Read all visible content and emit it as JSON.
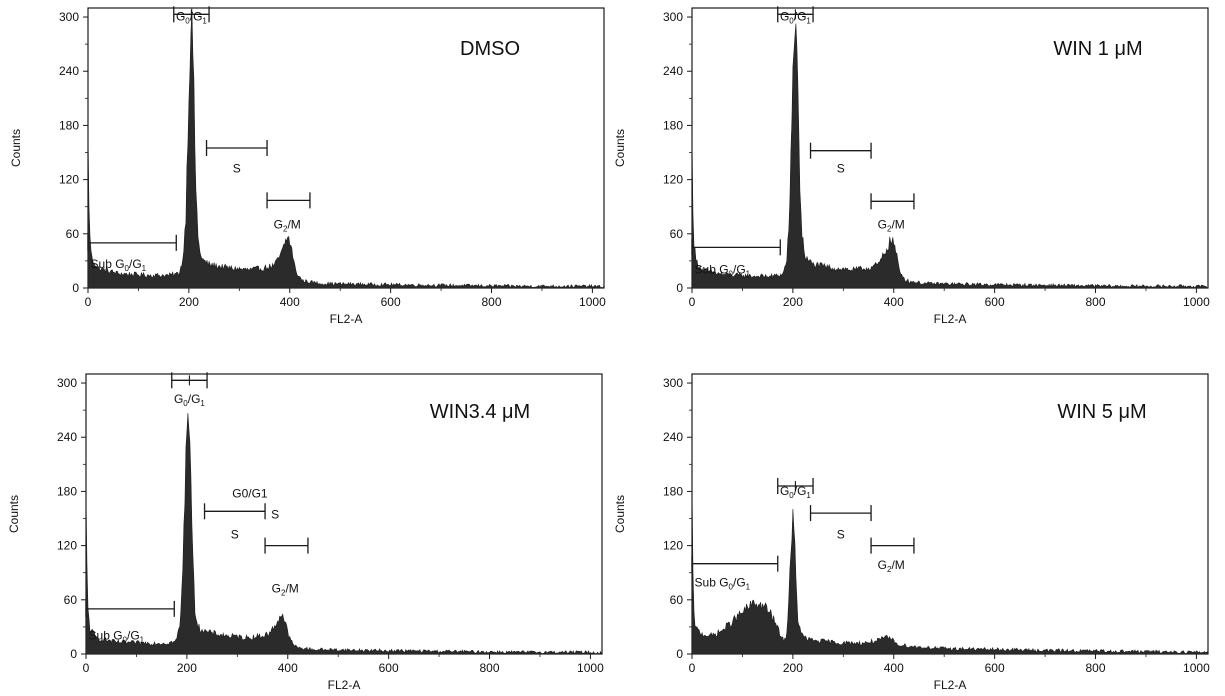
{
  "chart_data": [
    {
      "type": "area",
      "title": "DMSO",
      "xlabel": "FL2-A",
      "ylabel": "Counts",
      "xlim": [
        0,
        1023
      ],
      "ylim": [
        0,
        310
      ],
      "xticks": [
        "0",
        "200",
        "400",
        "600",
        "800",
        "1000"
      ],
      "yticks": [
        "0",
        "60",
        "120",
        "180",
        "240",
        "300"
      ],
      "series": [
        {
          "points": [
            [
              0,
              165
            ],
            [
              3,
              60
            ],
            [
              8,
              32
            ],
            [
              20,
              22
            ],
            [
              60,
              16
            ],
            [
              120,
              14
            ],
            [
              160,
              14
            ],
            [
              180,
              16
            ],
            [
              188,
              30
            ],
            [
              194,
              80
            ],
            [
              198,
              175
            ],
            [
              202,
              260
            ],
            [
              205,
              300
            ],
            [
              208,
              265
            ],
            [
              211,
              185
            ],
            [
              214,
              110
            ],
            [
              218,
              55
            ],
            [
              225,
              32
            ],
            [
              240,
              26
            ],
            [
              280,
              22
            ],
            [
              320,
              20
            ],
            [
              350,
              22
            ],
            [
              370,
              25
            ],
            [
              385,
              40
            ],
            [
              393,
              54
            ],
            [
              398,
              55
            ],
            [
              404,
              42
            ],
            [
              412,
              18
            ],
            [
              425,
              8
            ],
            [
              460,
              5
            ],
            [
              550,
              4
            ],
            [
              700,
              3
            ],
            [
              850,
              2
            ],
            [
              1000,
              2
            ],
            [
              1023,
              1
            ]
          ]
        }
      ],
      "annotations": [
        {
          "text": "G",
          "sub": "0",
          "text2": "/G",
          "sub2": "1",
          "x": 205,
          "y": 296
        },
        {
          "text": "S",
          "x": 295,
          "y": 128
        },
        {
          "text": "G",
          "sub": "2",
          "text2": "/M",
          "x": 395,
          "y": 66
        },
        {
          "text": "Sub G",
          "sub": "0",
          "text2": "/G",
          "sub2": "1",
          "x": 5,
          "y": 22
        }
      ],
      "markers": [
        {
          "x1": 170,
          "x2": 240,
          "y": 303,
          "center": 205
        },
        {
          "x1": 235,
          "x2": 355,
          "y": 155
        },
        {
          "x1": 355,
          "x2": 440,
          "y": 97
        },
        {
          "x1": 0,
          "x2": 175,
          "y": 50
        }
      ]
    },
    {
      "type": "area",
      "title": "WIN 1 μM",
      "xlabel": "FL2-A",
      "ylabel": "Counts",
      "xlim": [
        0,
        1023
      ],
      "ylim": [
        0,
        310
      ],
      "xticks": [
        "0",
        "200",
        "400",
        "600",
        "800",
        "1000"
      ],
      "yticks": [
        "0",
        "60",
        "120",
        "180",
        "240",
        "300"
      ],
      "series": [
        {
          "points": [
            [
              0,
              160
            ],
            [
              3,
              55
            ],
            [
              8,
              30
            ],
            [
              20,
              20
            ],
            [
              60,
              15
            ],
            [
              120,
              13
            ],
            [
              160,
              13
            ],
            [
              180,
              15
            ],
            [
              188,
              30
            ],
            [
              194,
              90
            ],
            [
              198,
              190
            ],
            [
              202,
              275
            ],
            [
              205,
              300
            ],
            [
              208,
              270
            ],
            [
              211,
              190
            ],
            [
              214,
              115
            ],
            [
              218,
              58
            ],
            [
              225,
              33
            ],
            [
              240,
              26
            ],
            [
              280,
              22
            ],
            [
              320,
              20
            ],
            [
              350,
              22
            ],
            [
              370,
              26
            ],
            [
              385,
              42
            ],
            [
              393,
              52
            ],
            [
              398,
              53
            ],
            [
              404,
              40
            ],
            [
              412,
              18
            ],
            [
              425,
              8
            ],
            [
              460,
              5
            ],
            [
              550,
              4
            ],
            [
              700,
              3
            ],
            [
              850,
              2
            ],
            [
              1000,
              2
            ],
            [
              1023,
              1
            ]
          ]
        }
      ],
      "annotations": [
        {
          "text": "G",
          "sub": "0",
          "text2": "/G",
          "sub2": "1",
          "x": 205,
          "y": 296
        },
        {
          "text": "S",
          "x": 295,
          "y": 128
        },
        {
          "text": "G",
          "sub": "2",
          "text2": "/M",
          "x": 395,
          "y": 66
        },
        {
          "text": "Sub G",
          "sub": "0",
          "text2": "/G",
          "sub2": "1",
          "x": 5,
          "y": 16
        }
      ],
      "markers": [
        {
          "x1": 170,
          "x2": 240,
          "y": 303,
          "center": 205
        },
        {
          "x1": 235,
          "x2": 355,
          "y": 152
        },
        {
          "x1": 355,
          "x2": 440,
          "y": 96
        },
        {
          "x1": 0,
          "x2": 175,
          "y": 45
        }
      ]
    },
    {
      "type": "area",
      "title": "WIN3.4 μM",
      "xlabel": "FL2-A",
      "ylabel": "Counts",
      "xlim": [
        0,
        1023
      ],
      "ylim": [
        0,
        310
      ],
      "xticks": [
        "0",
        "200",
        "400",
        "600",
        "800",
        "1000"
      ],
      "yticks": [
        "0",
        "60",
        "120",
        "180",
        "240",
        "300"
      ],
      "series": [
        {
          "points": [
            [
              0,
              165
            ],
            [
              3,
              55
            ],
            [
              8,
              28
            ],
            [
              20,
              18
            ],
            [
              60,
              13
            ],
            [
              120,
              12
            ],
            [
              160,
              12
            ],
            [
              178,
              14
            ],
            [
              186,
              30
            ],
            [
              192,
              90
            ],
            [
              196,
              180
            ],
            [
              200,
              255
            ],
            [
              203,
              280
            ],
            [
              206,
              250
            ],
            [
              209,
              170
            ],
            [
              212,
              100
            ],
            [
              216,
              50
            ],
            [
              222,
              30
            ],
            [
              240,
              24
            ],
            [
              280,
              20
            ],
            [
              320,
              18
            ],
            [
              350,
              20
            ],
            [
              365,
              23
            ],
            [
              378,
              34
            ],
            [
              386,
              44
            ],
            [
              391,
              42
            ],
            [
              397,
              30
            ],
            [
              405,
              15
            ],
            [
              418,
              7
            ],
            [
              450,
              5
            ],
            [
              550,
              4
            ],
            [
              700,
              3
            ],
            [
              850,
              2
            ],
            [
              1000,
              2
            ],
            [
              1023,
              1
            ]
          ]
        }
      ],
      "annotations": [
        {
          "text": "G",
          "sub": "0",
          "text2": "/G",
          "sub2": "1",
          "x": 205,
          "y": 278
        },
        {
          "text": "G0/G1",
          "x": 325,
          "y": 173
        },
        {
          "text": "S",
          "x": 375,
          "y": 150
        },
        {
          "text": "S",
          "x": 295,
          "y": 128
        },
        {
          "text": "G",
          "sub": "2",
          "text2": "/M",
          "x": 395,
          "y": 68
        },
        {
          "text": "Sub G",
          "sub": "0",
          "text2": "/G",
          "sub2": "1",
          "x": 5,
          "y": 16
        }
      ],
      "markers": [
        {
          "x1": 170,
          "x2": 240,
          "y": 303,
          "center": 205
        },
        {
          "x1": 235,
          "x2": 355,
          "y": 158
        },
        {
          "x1": 355,
          "x2": 440,
          "y": 120
        },
        {
          "x1": 0,
          "x2": 175,
          "y": 50
        }
      ]
    },
    {
      "type": "area",
      "title": "WIN 5 μM",
      "xlabel": "FL2-A",
      "ylabel": "Counts",
      "xlim": [
        0,
        1023
      ],
      "ylim": [
        0,
        310
      ],
      "xticks": [
        "0",
        "200",
        "400",
        "600",
        "800",
        "1000"
      ],
      "yticks": [
        "0",
        "60",
        "120",
        "180",
        "240",
        "300"
      ],
      "series": [
        {
          "points": [
            [
              0,
              175
            ],
            [
              3,
              45
            ],
            [
              8,
              28
            ],
            [
              20,
              22
            ],
            [
              40,
              20
            ],
            [
              60,
              26
            ],
            [
              80,
              36
            ],
            [
              100,
              46
            ],
            [
              115,
              53
            ],
            [
              125,
              56
            ],
            [
              135,
              54
            ],
            [
              145,
              52
            ],
            [
              155,
              45
            ],
            [
              165,
              35
            ],
            [
              172,
              25
            ],
            [
              180,
              16
            ],
            [
              186,
              15
            ],
            [
              190,
              40
            ],
            [
              194,
              90
            ],
            [
              197,
              130
            ],
            [
              200,
              150
            ],
            [
              203,
              130
            ],
            [
              206,
              80
            ],
            [
              210,
              40
            ],
            [
              216,
              22
            ],
            [
              230,
              16
            ],
            [
              260,
              14
            ],
            [
              300,
              12
            ],
            [
              340,
              12
            ],
            [
              370,
              15
            ],
            [
              385,
              18
            ],
            [
              392,
              18
            ],
            [
              400,
              14
            ],
            [
              412,
              10
            ],
            [
              440,
              8
            ],
            [
              500,
              6
            ],
            [
              600,
              5
            ],
            [
              700,
              4
            ],
            [
              850,
              3
            ],
            [
              1000,
              2
            ],
            [
              1023,
              2
            ]
          ]
        }
      ],
      "annotations": [
        {
          "text": "G",
          "sub": "0",
          "text2": "/G",
          "sub2": "1",
          "x": 205,
          "y": 176
        },
        {
          "text": "S",
          "x": 295,
          "y": 128
        },
        {
          "text": "G",
          "sub": "2",
          "text2": "/M",
          "x": 395,
          "y": 94
        },
        {
          "text": "Sub G",
          "sub": "0",
          "text2": "/G",
          "sub2": "1",
          "x": 5,
          "y": 75
        }
      ],
      "markers": [
        {
          "x1": 170,
          "x2": 240,
          "y": 186,
          "center": 205
        },
        {
          "x1": 235,
          "x2": 355,
          "y": 156
        },
        {
          "x1": 355,
          "x2": 440,
          "y": 120
        },
        {
          "x1": 0,
          "x2": 170,
          "y": 100
        }
      ]
    }
  ]
}
